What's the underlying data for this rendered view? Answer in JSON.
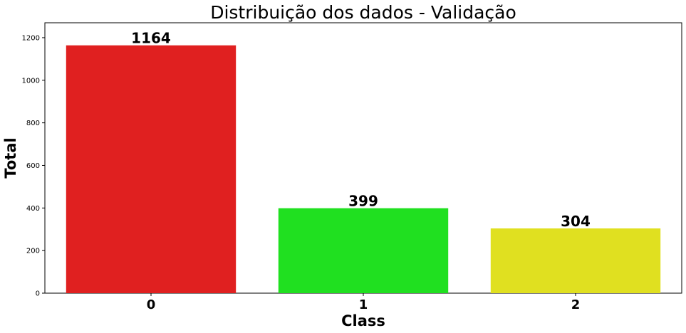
{
  "chart_data": {
    "type": "bar",
    "title": "Distribuição dos dados - Validação",
    "xlabel": "Class",
    "ylabel": "Total",
    "categories": [
      "0",
      "1",
      "2"
    ],
    "values": [
      1164,
      399,
      304
    ],
    "data_labels": [
      "1164",
      "399",
      "304"
    ],
    "colors": [
      "#e02020",
      "#20e020",
      "#e0e020"
    ],
    "ylim": [
      0,
      1270
    ],
    "yticks": [
      0,
      200,
      400,
      600,
      800,
      1000,
      1200
    ],
    "ytick_labels": [
      "0",
      "200",
      "400",
      "600",
      "800",
      "1000",
      "1200"
    ],
    "grid": false,
    "legend": "none"
  }
}
